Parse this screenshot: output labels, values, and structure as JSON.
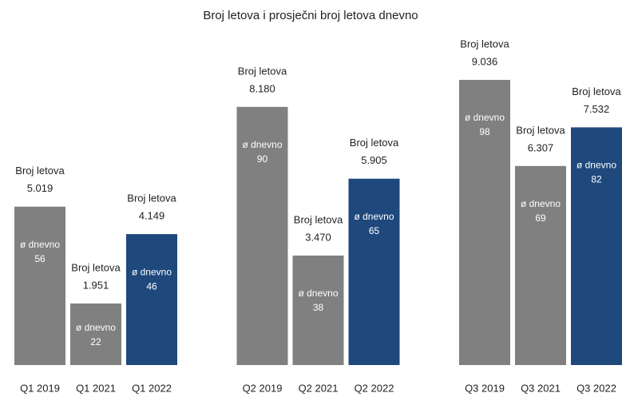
{
  "chart_data": {
    "type": "bar",
    "title": "Broj letova i prosječni broj letova dnevno",
    "categories": [
      "Q1 2019",
      "Q1 2021",
      "Q1 2022",
      "Q2 2019",
      "Q2 2021",
      "Q2 2022",
      "Q3 2019",
      "Q3 2021",
      "Q3 2022"
    ],
    "series": [
      {
        "name": "Broj letova",
        "values": [
          5019,
          1951,
          4149,
          8180,
          3470,
          5905,
          9036,
          6307,
          7532
        ],
        "value_labels": [
          "5.019",
          "1.951",
          "4.149",
          "8.180",
          "3.470",
          "5.905",
          "9.036",
          "6.307",
          "7.532"
        ]
      },
      {
        "name": "ø dnevno",
        "values": [
          56,
          22,
          46,
          90,
          38,
          65,
          98,
          69,
          82
        ]
      }
    ],
    "colors": [
      "#808080",
      "#808080",
      "#1f497d",
      "#808080",
      "#808080",
      "#1f497d",
      "#808080",
      "#808080",
      "#1f497d"
    ]
  }
}
